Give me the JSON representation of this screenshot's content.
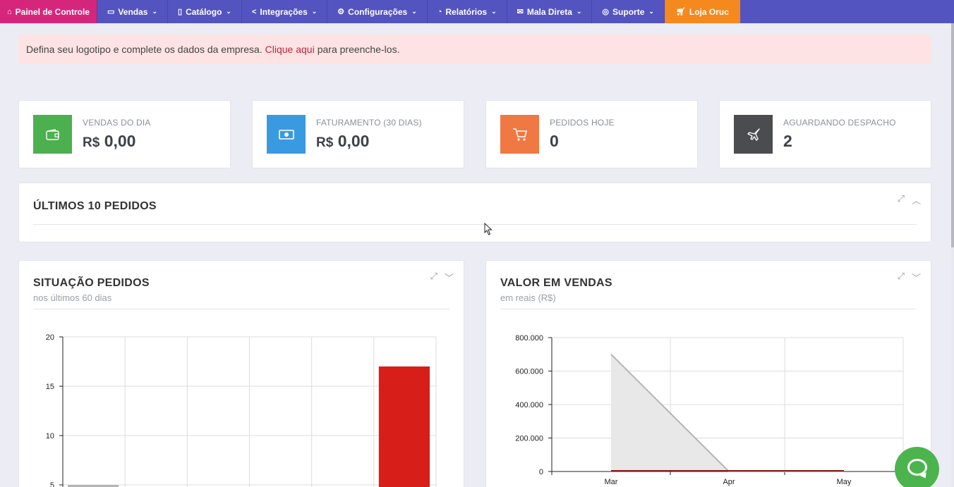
{
  "nav": {
    "home": {
      "label": "Painel de Controle",
      "icon": "home-icon"
    },
    "items": [
      {
        "label": "Vendas",
        "icon": "wallet-icon"
      },
      {
        "label": "Catálogo",
        "icon": "book-icon"
      },
      {
        "label": "Integrações",
        "icon": "share-icon"
      },
      {
        "label": "Configurações",
        "icon": "gear-icon"
      },
      {
        "label": "Relatórios",
        "icon": "chart-icon"
      },
      {
        "label": "Mala Direta",
        "icon": "mail-icon"
      },
      {
        "label": "Suporte",
        "icon": "lifebuoy-icon"
      }
    ],
    "store": {
      "label": "Loja Oruc",
      "icon": "cart-icon"
    }
  },
  "alert": {
    "text_before": "Defina seu logotipo e complete os dados da empresa.",
    "link": "Clique aqui",
    "text_after": "para preenche-los."
  },
  "stats": [
    {
      "label": "VENDAS DO DIA",
      "currency": "R$",
      "value": "0,00",
      "color": "#4cb04f",
      "icon": "wallet-icon"
    },
    {
      "label": "FATURAMENTO (30 DIAS)",
      "currency": "R$",
      "value": "0,00",
      "color": "#3a9ae0",
      "icon": "money-icon"
    },
    {
      "label": "PEDIDOS HOJE",
      "currency": "",
      "value": "0",
      "color": "#f07843",
      "icon": "cart-icon"
    },
    {
      "label": "AGUARDANDO DESPACHO",
      "currency": "",
      "value": "2",
      "color": "#4b4c50",
      "icon": "plane-icon"
    }
  ],
  "orders_panel": {
    "title": "ÚLTIMOS 10 PEDIDOS"
  },
  "status_panel": {
    "title": "SITUAÇÃO PEDIDOS",
    "subtitle": "nos últimos 60 dias"
  },
  "sales_panel": {
    "title": "VALOR EM VENDAS",
    "subtitle": "em reais (R$)"
  },
  "chart_data": [
    {
      "type": "bar",
      "title": "SITUAÇÃO PEDIDOS",
      "subtitle": "nos últimos 60 dias",
      "categories": [
        "",
        "",
        "",
        "",
        "",
        ""
      ],
      "values": [
        5,
        0,
        0,
        0,
        0,
        17
      ],
      "colors": [
        "#b4b4b4",
        "#b4b4b4",
        "#b4b4b4",
        "#b4b4b4",
        "#b4b4b4",
        "#d81e18"
      ],
      "yticks": [
        "20",
        "15",
        "10",
        "5"
      ],
      "ylim": [
        0,
        20
      ],
      "grid": true
    },
    {
      "type": "area",
      "title": "VALOR EM VENDAS",
      "subtitle": "em reais (R$)",
      "x": [
        "Mar",
        "Apr",
        "May"
      ],
      "series": [
        {
          "values": [
            700000,
            0,
            0
          ],
          "color": "#b4b4b4"
        },
        {
          "values": [
            0,
            0,
            0
          ],
          "color": "#8b1a1a"
        }
      ],
      "yticks": [
        "800.000",
        "600.000",
        "400.000",
        "200.000",
        "0"
      ],
      "ylim": [
        0,
        800000
      ],
      "grid": true
    }
  ]
}
